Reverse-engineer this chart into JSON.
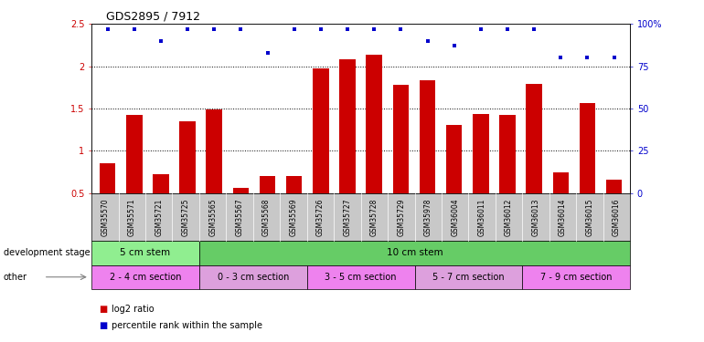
{
  "title": "GDS2895 / 7912",
  "samples": [
    "GSM35570",
    "GSM35571",
    "GSM35721",
    "GSM35725",
    "GSM35565",
    "GSM35567",
    "GSM35568",
    "GSM35569",
    "GSM35726",
    "GSM35727",
    "GSM35728",
    "GSM35729",
    "GSM35978",
    "GSM36004",
    "GSM36011",
    "GSM36012",
    "GSM36013",
    "GSM36014",
    "GSM36015",
    "GSM36016"
  ],
  "log2_ratio": [
    0.85,
    1.42,
    0.72,
    1.35,
    1.49,
    0.56,
    0.7,
    0.7,
    1.97,
    2.08,
    2.14,
    1.78,
    1.84,
    1.31,
    1.44,
    1.42,
    1.79,
    0.75,
    1.56,
    0.66
  ],
  "percentile": [
    97,
    97,
    90,
    97,
    97,
    97,
    83,
    97,
    97,
    97,
    97,
    97,
    90,
    87,
    97,
    97,
    97,
    80,
    80,
    80
  ],
  "bar_color": "#cc0000",
  "dot_color": "#0000cc",
  "ylim_left": [
    0.5,
    2.5
  ],
  "ylim_right": [
    0,
    100
  ],
  "yticks_left": [
    0.5,
    1.0,
    1.5,
    2.0,
    2.5
  ],
  "yticks_right": [
    0,
    25,
    50,
    75,
    100
  ],
  "ytick_labels_right": [
    "0",
    "25",
    "50",
    "75",
    "100%"
  ],
  "development_stage_groups": [
    {
      "label": "5 cm stem",
      "start": 0,
      "end": 4,
      "color": "#90ee90"
    },
    {
      "label": "10 cm stem",
      "start": 4,
      "end": 20,
      "color": "#66cc66"
    }
  ],
  "other_groups": [
    {
      "label": "2 - 4 cm section",
      "start": 0,
      "end": 4,
      "color": "#ee82ee"
    },
    {
      "label": "0 - 3 cm section",
      "start": 4,
      "end": 8,
      "color": "#dda0dd"
    },
    {
      "label": "3 - 5 cm section",
      "start": 8,
      "end": 12,
      "color": "#ee82ee"
    },
    {
      "label": "5 - 7 cm section",
      "start": 12,
      "end": 16,
      "color": "#dda0dd"
    },
    {
      "label": "7 - 9 cm section",
      "start": 16,
      "end": 20,
      "color": "#ee82ee"
    }
  ],
  "bg_color": "#ffffff",
  "xtick_bg_color": "#c8c8c8",
  "n_samples": 20
}
